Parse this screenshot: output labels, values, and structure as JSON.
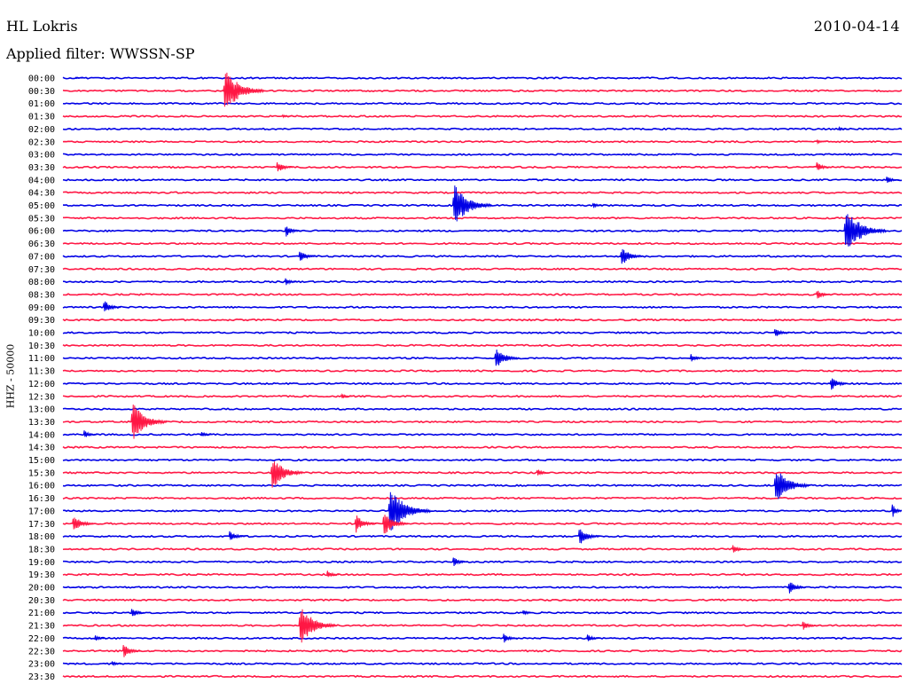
{
  "header": {
    "station": "HL Lokris",
    "date": "2010-04-14",
    "filter": "Applied filter: WWSSN-SP"
  },
  "colors": {
    "trace_a": "#0000e6",
    "trace_b": "#ff1744",
    "background": "#ffffff",
    "text": "#000000"
  },
  "chart_data": {
    "type": "line",
    "title": "HL Lokris",
    "subtitle": "Applied filter: WWSSN-SP",
    "ylabel": "HHZ - 50000",
    "xlabel": "",
    "grid": false,
    "legend": "none",
    "colors_alternate": [
      "#0000e6",
      "#ff1744"
    ],
    "tick_labels": [
      "00:00",
      "00:30",
      "01:00",
      "01:30",
      "02:00",
      "02:30",
      "03:00",
      "03:30",
      "04:00",
      "04:30",
      "05:00",
      "05:30",
      "06:00",
      "06:30",
      "07:00",
      "07:30",
      "08:00",
      "08:30",
      "09:00",
      "09:30",
      "10:00",
      "10:30",
      "11:00",
      "11:30",
      "12:00",
      "12:30",
      "13:00",
      "13:30",
      "14:00",
      "14:30",
      "15:00",
      "15:30",
      "16:00",
      "16:30",
      "17:00",
      "17:30",
      "18:00",
      "18:30",
      "19:00",
      "19:30",
      "20:00",
      "20:30",
      "21:00",
      "21:30",
      "22:00",
      "22:30",
      "23:00",
      "23:30"
    ],
    "x_range_minutes": [
      0,
      30
    ],
    "events": [
      {
        "row": 0,
        "minute": 0.5,
        "amplitude": 0.1
      },
      {
        "row": 1,
        "minute": 5.8,
        "amplitude": 2.1
      },
      {
        "row": 3,
        "minute": 7.9,
        "amplitude": 0.15
      },
      {
        "row": 4,
        "minute": 27.8,
        "amplitude": 0.2
      },
      {
        "row": 5,
        "minute": 27.0,
        "amplitude": 0.2
      },
      {
        "row": 7,
        "minute": 7.7,
        "amplitude": 0.6
      },
      {
        "row": 7,
        "minute": 27.0,
        "amplitude": 0.5
      },
      {
        "row": 8,
        "minute": 29.5,
        "amplitude": 0.4
      },
      {
        "row": 10,
        "minute": 14.0,
        "amplitude": 2.0
      },
      {
        "row": 10,
        "minute": 19.0,
        "amplitude": 0.3
      },
      {
        "row": 12,
        "minute": 8.0,
        "amplitude": 0.6
      },
      {
        "row": 12,
        "minute": 28.0,
        "amplitude": 2.2
      },
      {
        "row": 14,
        "minute": 8.5,
        "amplitude": 0.6
      },
      {
        "row": 14,
        "minute": 20.0,
        "amplitude": 1.0
      },
      {
        "row": 16,
        "minute": 8.0,
        "amplitude": 0.4
      },
      {
        "row": 17,
        "minute": 27.0,
        "amplitude": 0.5
      },
      {
        "row": 18,
        "minute": 1.5,
        "amplitude": 0.7
      },
      {
        "row": 20,
        "minute": 25.5,
        "amplitude": 0.5
      },
      {
        "row": 22,
        "minute": 15.5,
        "amplitude": 1.1
      },
      {
        "row": 22,
        "minute": 22.5,
        "amplitude": 0.4
      },
      {
        "row": 24,
        "minute": 27.5,
        "amplitude": 0.7
      },
      {
        "row": 25,
        "minute": 10.0,
        "amplitude": 0.3
      },
      {
        "row": 27,
        "minute": 2.5,
        "amplitude": 1.8
      },
      {
        "row": 28,
        "minute": 0.8,
        "amplitude": 0.4
      },
      {
        "row": 28,
        "minute": 5.0,
        "amplitude": 0.3
      },
      {
        "row": 31,
        "minute": 7.5,
        "amplitude": 1.6
      },
      {
        "row": 31,
        "minute": 17.0,
        "amplitude": 0.4
      },
      {
        "row": 32,
        "minute": 25.5,
        "amplitude": 1.8
      },
      {
        "row": 34,
        "minute": 11.7,
        "amplitude": 2.2
      },
      {
        "row": 34,
        "minute": 29.7,
        "amplitude": 0.8
      },
      {
        "row": 35,
        "minute": 0.4,
        "amplitude": 0.9
      },
      {
        "row": 35,
        "minute": 10.5,
        "amplitude": 0.9
      },
      {
        "row": 35,
        "minute": 11.5,
        "amplitude": 1.2
      },
      {
        "row": 36,
        "minute": 6.0,
        "amplitude": 0.6
      },
      {
        "row": 36,
        "minute": 18.5,
        "amplitude": 0.9
      },
      {
        "row": 37,
        "minute": 24.0,
        "amplitude": 0.4
      },
      {
        "row": 38,
        "minute": 14.0,
        "amplitude": 0.5
      },
      {
        "row": 39,
        "minute": 9.5,
        "amplitude": 0.4
      },
      {
        "row": 40,
        "minute": 26.0,
        "amplitude": 0.7
      },
      {
        "row": 42,
        "minute": 2.5,
        "amplitude": 0.5
      },
      {
        "row": 42,
        "minute": 16.5,
        "amplitude": 0.3
      },
      {
        "row": 43,
        "minute": 8.5,
        "amplitude": 1.9
      },
      {
        "row": 43,
        "minute": 26.5,
        "amplitude": 0.5
      },
      {
        "row": 44,
        "minute": 1.2,
        "amplitude": 0.3
      },
      {
        "row": 44,
        "minute": 15.8,
        "amplitude": 0.5
      },
      {
        "row": 44,
        "minute": 18.8,
        "amplitude": 0.4
      },
      {
        "row": 45,
        "minute": 2.2,
        "amplitude": 0.7
      },
      {
        "row": 46,
        "minute": 1.8,
        "amplitude": 0.3
      }
    ]
  }
}
